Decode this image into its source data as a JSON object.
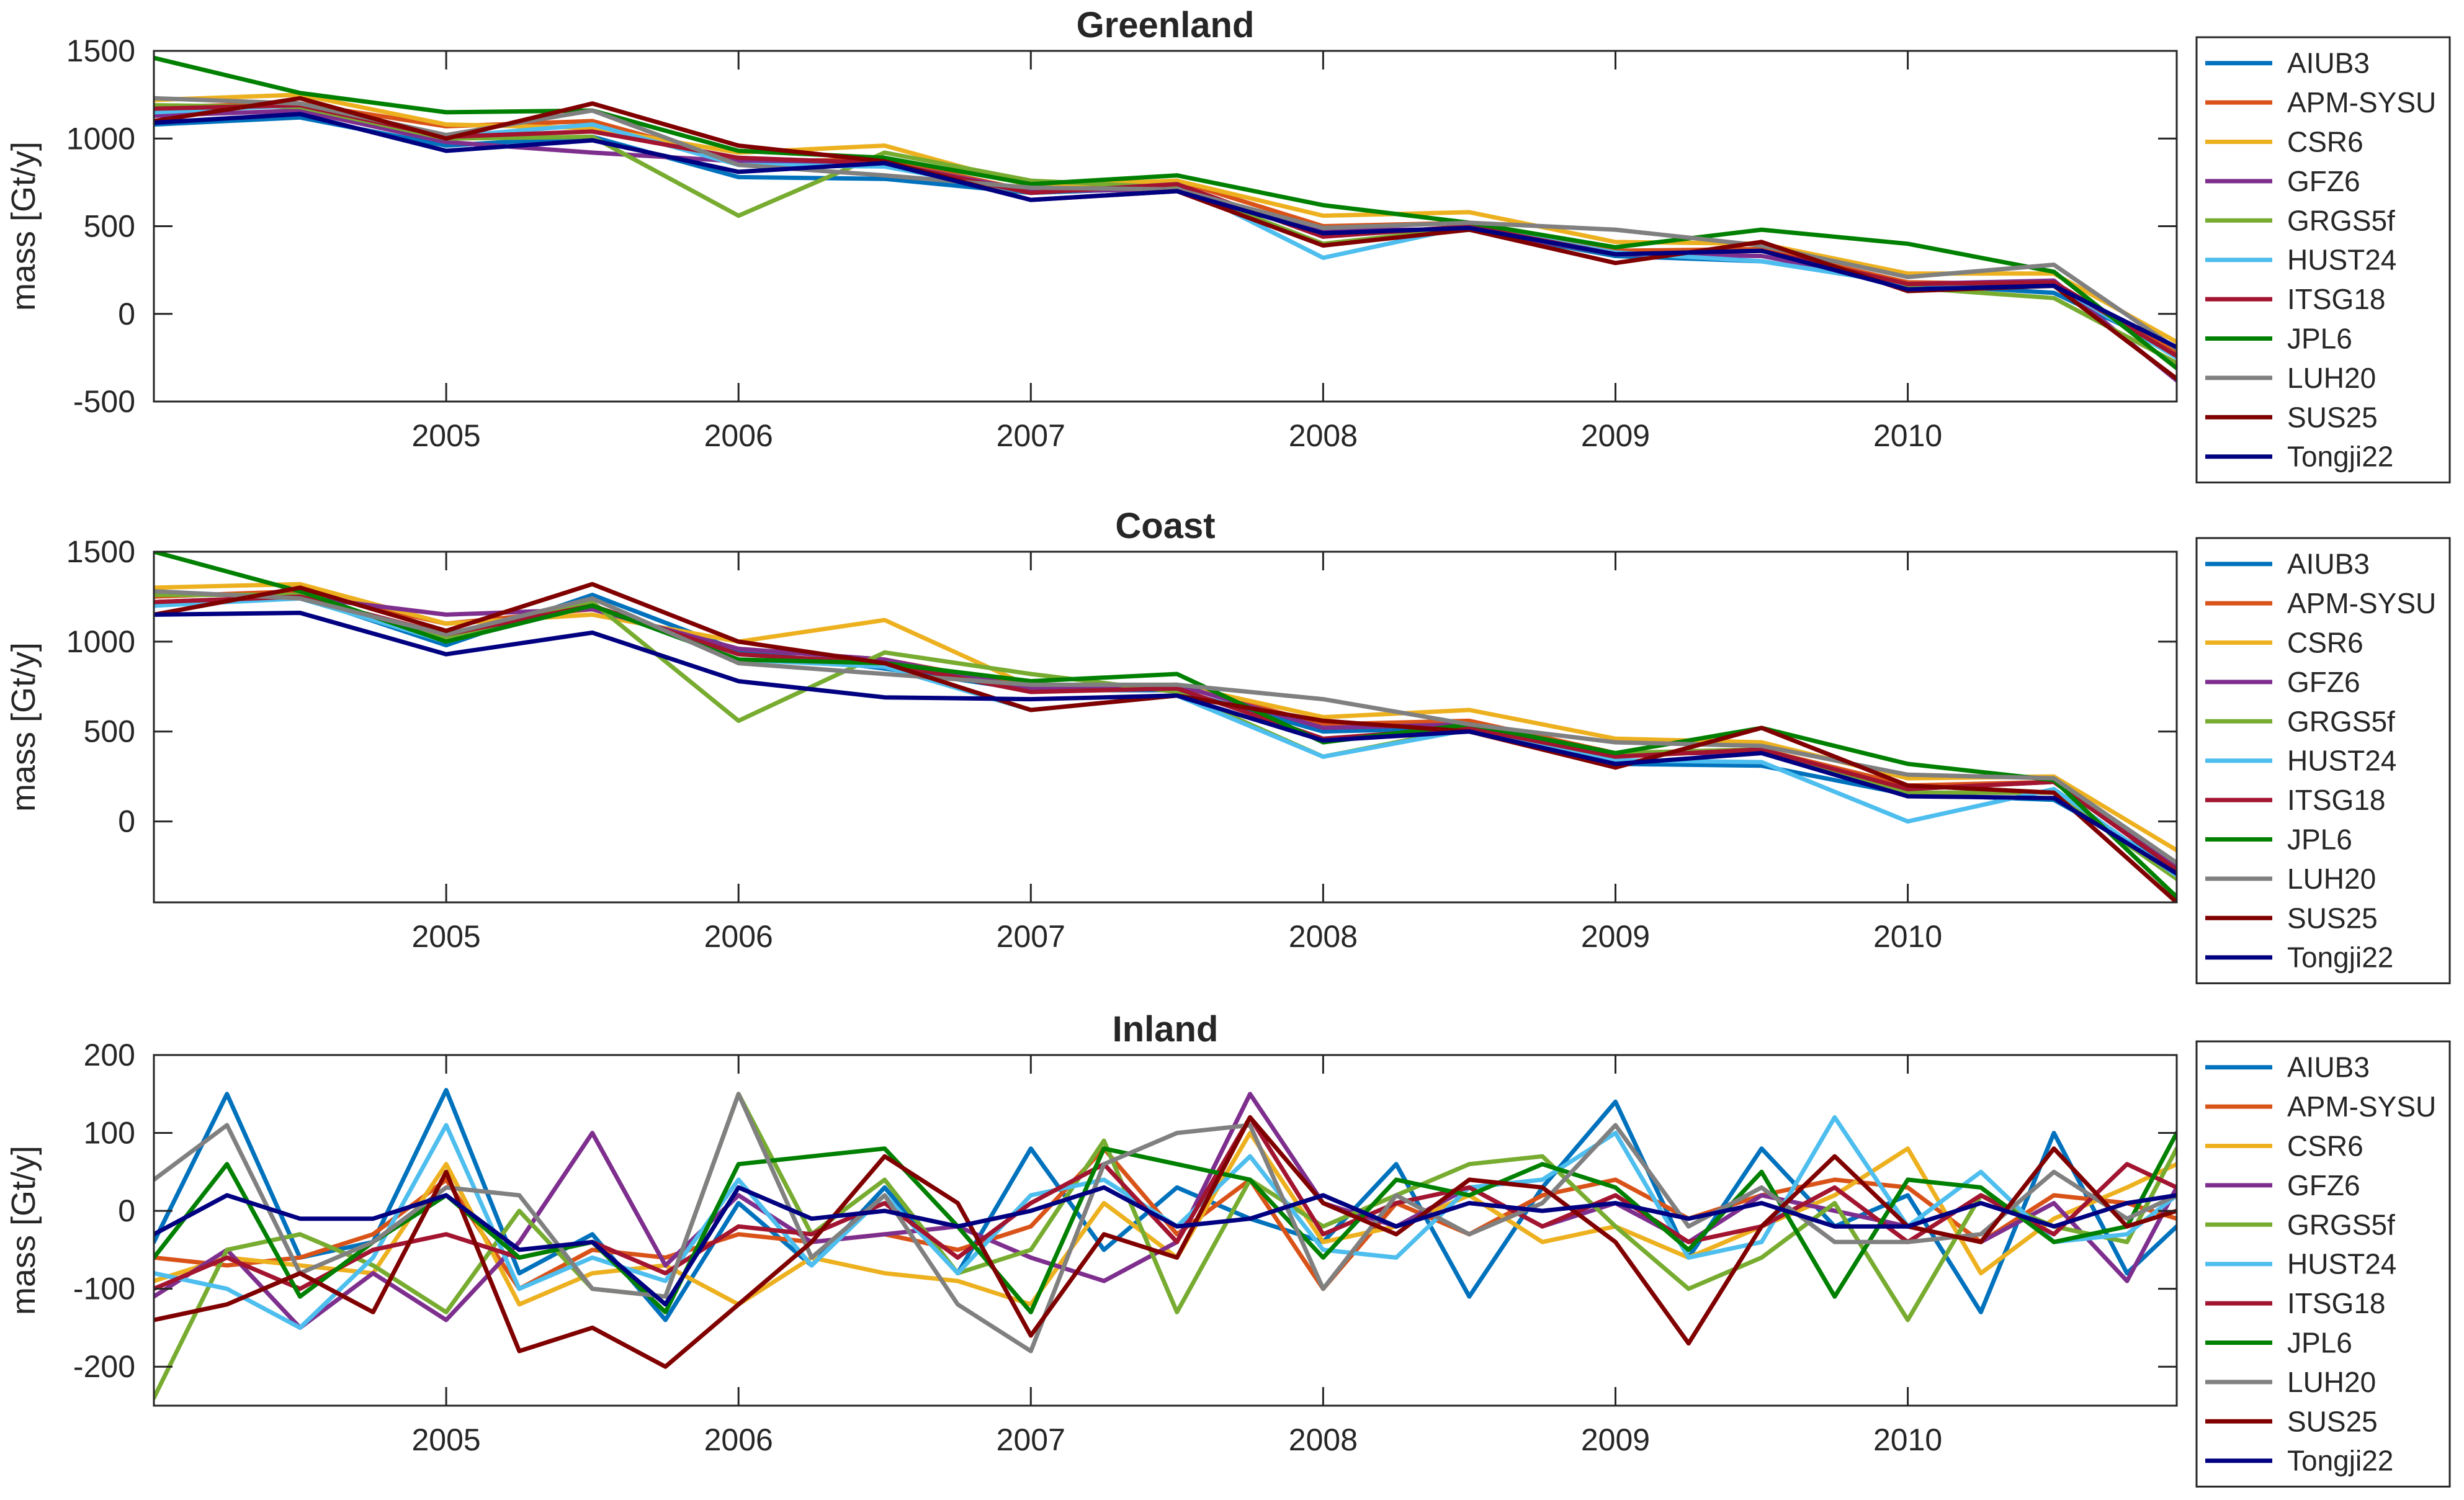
{
  "chart_data": [
    {
      "type": "line",
      "title": "Greenland",
      "ylabel": "mass [Gt/y]",
      "xlim": [
        2004.0,
        2010.92
      ],
      "ylim": [
        -500,
        1500
      ],
      "yticks": [
        -500,
        0,
        500,
        1000,
        1500
      ],
      "ytick_labels": [
        "-500",
        "0",
        "500",
        "1000",
        "1500"
      ],
      "xticks": [
        2005,
        2006,
        2007,
        2008,
        2009,
        2010
      ],
      "xtick_labels": [
        "2005",
        "2006",
        "2007",
        "2008",
        "2009",
        "2010"
      ],
      "grid": false,
      "legend": "outside-right",
      "x": [
        2004.0,
        2004.5,
        2005.0,
        2005.5,
        2006.0,
        2006.5,
        2007.0,
        2007.5,
        2008.0,
        2008.5,
        2009.0,
        2009.5,
        2010.0,
        2010.5,
        2010.92
      ],
      "series": [
        {
          "name": "AIUB3",
          "color": "#0072BD",
          "values": [
            1080,
            1120,
            960,
            1010,
            780,
            770,
            690,
            720,
            470,
            480,
            330,
            300,
            170,
            120,
            -210
          ]
        },
        {
          "name": "APM-SYSU",
          "color": "#D95319",
          "values": [
            1180,
            1200,
            1070,
            1100,
            870,
            880,
            700,
            760,
            500,
            520,
            360,
            370,
            180,
            170,
            -220
          ]
        },
        {
          "name": "CSR6",
          "color": "#EDB120",
          "values": [
            1220,
            1250,
            1080,
            1060,
            920,
            960,
            730,
            760,
            560,
            580,
            410,
            400,
            230,
            230,
            -160
          ]
        },
        {
          "name": "GFZ6",
          "color": "#7E2F8E",
          "values": [
            1130,
            1160,
            980,
            920,
            870,
            860,
            700,
            710,
            480,
            480,
            340,
            330,
            170,
            190,
            -380
          ]
        },
        {
          "name": "GRGS5f",
          "color": "#77AC30",
          "values": [
            1190,
            1180,
            1000,
            1010,
            560,
            920,
            760,
            720,
            400,
            490,
            340,
            360,
            150,
            90,
            -280
          ]
        },
        {
          "name": "HUST24",
          "color": "#4DBEEE",
          "values": [
            1150,
            1190,
            1010,
            1080,
            850,
            840,
            690,
            740,
            320,
            500,
            350,
            300,
            170,
            170,
            -250
          ]
        },
        {
          "name": "ITSG18",
          "color": "#A2142F",
          "values": [
            1170,
            1190,
            1010,
            1040,
            890,
            860,
            690,
            740,
            440,
            500,
            340,
            360,
            170,
            180,
            -240
          ]
        },
        {
          "name": "JPL6",
          "color": "#008000",
          "values": [
            1460,
            1260,
            1150,
            1160,
            930,
            890,
            740,
            790,
            620,
            520,
            380,
            480,
            400,
            240,
            -310
          ]
        },
        {
          "name": "LUH20",
          "color": "#808080",
          "values": [
            1230,
            1200,
            1020,
            1160,
            850,
            790,
            720,
            710,
            490,
            520,
            480,
            390,
            210,
            280,
            -200
          ]
        },
        {
          "name": "SUS25",
          "color": "#800000",
          "values": [
            1100,
            1230,
            1000,
            1200,
            960,
            870,
            650,
            700,
            390,
            480,
            290,
            410,
            130,
            160,
            -370
          ]
        },
        {
          "name": "Tongji22",
          "color": "#000080",
          "values": [
            1090,
            1140,
            930,
            990,
            810,
            860,
            650,
            700,
            460,
            490,
            340,
            360,
            140,
            160,
            -190
          ]
        }
      ]
    },
    {
      "type": "line",
      "title": "Coast",
      "ylabel": "mass [Gt/y]",
      "xlim": [
        2004.0,
        2010.92
      ],
      "ylim": [
        -450,
        1500
      ],
      "yticks": [
        0,
        500,
        1000,
        1500
      ],
      "ytick_labels": [
        "0",
        "500",
        "1000",
        "1500"
      ],
      "xticks": [
        2005,
        2006,
        2007,
        2008,
        2009,
        2010
      ],
      "xtick_labels": [
        "2005",
        "2006",
        "2007",
        "2008",
        "2009",
        "2010"
      ],
      "grid": false,
      "legend": "outside-right",
      "x": [
        2004.0,
        2004.5,
        2005.0,
        2005.5,
        2006.0,
        2006.5,
        2007.0,
        2007.5,
        2008.0,
        2008.5,
        2009.0,
        2009.5,
        2010.0,
        2010.5,
        2010.92
      ],
      "series": [
        {
          "name": "AIUB3",
          "color": "#0072BD",
          "values": [
            1200,
            1250,
            980,
            1260,
            950,
            850,
            730,
            730,
            500,
            520,
            320,
            310,
            150,
            120,
            -260
          ]
        },
        {
          "name": "APM-SYSU",
          "color": "#D95319",
          "values": [
            1250,
            1280,
            1100,
            1180,
            960,
            900,
            750,
            760,
            540,
            560,
            380,
            400,
            200,
            220,
            -250
          ]
        },
        {
          "name": "CSR6",
          "color": "#EDB120",
          "values": [
            1300,
            1320,
            1100,
            1150,
            1000,
            1120,
            750,
            760,
            580,
            620,
            460,
            440,
            240,
            250,
            -160
          ]
        },
        {
          "name": "GFZ6",
          "color": "#7E2F8E",
          "values": [
            1220,
            1250,
            1150,
            1180,
            960,
            900,
            740,
            760,
            520,
            540,
            380,
            380,
            180,
            220,
            -260
          ]
        },
        {
          "name": "GRGS5f",
          "color": "#77AC30",
          "values": [
            1260,
            1260,
            1020,
            1220,
            560,
            940,
            820,
            720,
            360,
            520,
            380,
            400,
            160,
            160,
            -320
          ]
        },
        {
          "name": "HUST24",
          "color": "#4DBEEE",
          "values": [
            1200,
            1240,
            1000,
            1200,
            900,
            860,
            620,
            700,
            360,
            510,
            340,
            330,
            0,
            180,
            -300
          ]
        },
        {
          "name": "ITSG18",
          "color": "#A2142F",
          "values": [
            1220,
            1250,
            1040,
            1200,
            930,
            880,
            720,
            740,
            460,
            520,
            360,
            400,
            180,
            220,
            -270
          ]
        },
        {
          "name": "JPL6",
          "color": "#008000",
          "values": [
            1500,
            1280,
            1000,
            1200,
            900,
            880,
            780,
            820,
            440,
            540,
            380,
            520,
            320,
            230,
            -420
          ]
        },
        {
          "name": "LUH20",
          "color": "#808080",
          "values": [
            1280,
            1240,
            1040,
            1240,
            880,
            820,
            760,
            760,
            680,
            540,
            440,
            420,
            260,
            240,
            -230
          ]
        },
        {
          "name": "SUS25",
          "color": "#800000",
          "values": [
            1150,
            1300,
            1060,
            1320,
            1000,
            880,
            620,
            700,
            560,
            500,
            300,
            520,
            200,
            160,
            -450
          ]
        },
        {
          "name": "Tongji22",
          "color": "#000080",
          "values": [
            1150,
            1160,
            930,
            1050,
            780,
            690,
            680,
            700,
            450,
            500,
            320,
            380,
            140,
            130,
            -290
          ]
        }
      ]
    },
    {
      "type": "line",
      "title": "Inland",
      "ylabel": "mass [Gt/y]",
      "xlim": [
        2004.0,
        2010.92
      ],
      "ylim": [
        -250,
        200
      ],
      "yticks": [
        -200,
        -100,
        0,
        100,
        200
      ],
      "ytick_labels": [
        "-200",
        "-100",
        "0",
        "100",
        "200"
      ],
      "xticks": [
        2005,
        2006,
        2007,
        2008,
        2009,
        2010
      ],
      "xtick_labels": [
        "2005",
        "2006",
        "2007",
        "2008",
        "2009",
        "2010"
      ],
      "grid": false,
      "legend": "outside-right",
      "x": [
        2004.0,
        2004.25,
        2004.5,
        2004.75,
        2005.0,
        2005.25,
        2005.5,
        2005.75,
        2006.0,
        2006.25,
        2006.5,
        2006.75,
        2007.0,
        2007.25,
        2007.5,
        2007.75,
        2008.0,
        2008.25,
        2008.5,
        2008.75,
        2009.0,
        2009.25,
        2009.5,
        2009.75,
        2010.0,
        2010.25,
        2010.5,
        2010.75,
        2010.92
      ],
      "series": [
        {
          "name": "AIUB3",
          "color": "#0072BD",
          "values": [
            -40,
            150,
            -60,
            -40,
            155,
            -80,
            -30,
            -140,
            10,
            -70,
            30,
            -80,
            80,
            -50,
            30,
            -10,
            -40,
            60,
            -110,
            30,
            140,
            -60,
            80,
            -20,
            20,
            -130,
            100,
            -80,
            -20
          ]
        },
        {
          "name": "APM-SYSU",
          "color": "#D95319",
          "values": [
            -60,
            -70,
            -60,
            -30,
            40,
            -100,
            -50,
            -60,
            -30,
            -40,
            -30,
            -50,
            -20,
            80,
            -30,
            40,
            -100,
            10,
            -30,
            20,
            40,
            -10,
            20,
            40,
            30,
            -40,
            20,
            10,
            -10
          ]
        },
        {
          "name": "CSR6",
          "color": "#EDB120",
          "values": [
            -90,
            -60,
            -70,
            -80,
            60,
            -120,
            -80,
            -70,
            -120,
            -60,
            -80,
            -90,
            -120,
            10,
            -60,
            100,
            -40,
            -20,
            20,
            -40,
            -20,
            -60,
            -20,
            20,
            80,
            -80,
            -10,
            30,
            60
          ]
        },
        {
          "name": "GFZ6",
          "color": "#7E2F8E",
          "values": [
            -110,
            -50,
            -150,
            -80,
            -140,
            -40,
            100,
            -70,
            20,
            -40,
            -30,
            -20,
            -60,
            -90,
            -40,
            150,
            10,
            -20,
            30,
            -20,
            10,
            -40,
            20,
            0,
            -20,
            -40,
            10,
            -90,
            30
          ]
        },
        {
          "name": "GRGS5f",
          "color": "#77AC30",
          "values": [
            -240,
            -50,
            -30,
            -70,
            -130,
            0,
            -100,
            -110,
            150,
            -30,
            40,
            -80,
            -50,
            90,
            -130,
            40,
            -20,
            20,
            60,
            70,
            -20,
            -100,
            -60,
            10,
            -140,
            20,
            -20,
            -40,
            80
          ]
        },
        {
          "name": "HUST24",
          "color": "#4DBEEE",
          "values": [
            -80,
            -100,
            -150,
            -60,
            110,
            -100,
            -60,
            -90,
            40,
            -70,
            20,
            -80,
            20,
            40,
            -20,
            70,
            -50,
            -60,
            30,
            40,
            100,
            -60,
            -40,
            120,
            -20,
            50,
            -40,
            -30,
            20
          ]
        },
        {
          "name": "ITSG18",
          "color": "#A2142F",
          "values": [
            -100,
            -60,
            -100,
            -50,
            -30,
            -60,
            -40,
            -80,
            -20,
            -30,
            10,
            -60,
            10,
            60,
            -40,
            120,
            -30,
            10,
            30,
            -20,
            20,
            -40,
            -20,
            30,
            -40,
            20,
            -30,
            60,
            30
          ]
        },
        {
          "name": "JPL6",
          "color": "#008000",
          "values": [
            -60,
            60,
            -110,
            -40,
            20,
            -60,
            -40,
            -130,
            60,
            70,
            80,
            -20,
            -130,
            80,
            60,
            40,
            -60,
            40,
            20,
            60,
            30,
            -50,
            50,
            -110,
            40,
            30,
            -40,
            -20,
            100
          ]
        },
        {
          "name": "LUH20",
          "color": "#808080",
          "values": [
            40,
            110,
            -80,
            -40,
            30,
            20,
            -100,
            -110,
            150,
            -60,
            20,
            -120,
            -180,
            60,
            100,
            110,
            -100,
            20,
            -30,
            10,
            110,
            -20,
            30,
            -40,
            -40,
            -30,
            50,
            -10,
            20
          ]
        },
        {
          "name": "SUS25",
          "color": "#800000",
          "values": [
            -140,
            -120,
            -80,
            -130,
            50,
            -180,
            -150,
            -200,
            -120,
            -40,
            70,
            10,
            -160,
            -30,
            -60,
            120,
            10,
            -30,
            40,
            30,
            -40,
            -170,
            -20,
            70,
            -20,
            -40,
            80,
            -20,
            0
          ]
        },
        {
          "name": "Tongji22",
          "color": "#000080",
          "values": [
            -30,
            20,
            -10,
            -10,
            20,
            -50,
            -40,
            -120,
            30,
            -10,
            0,
            -20,
            0,
            30,
            -20,
            -10,
            20,
            -20,
            10,
            0,
            10,
            -10,
            10,
            -20,
            -20,
            10,
            -20,
            10,
            20
          ]
        }
      ]
    }
  ]
}
